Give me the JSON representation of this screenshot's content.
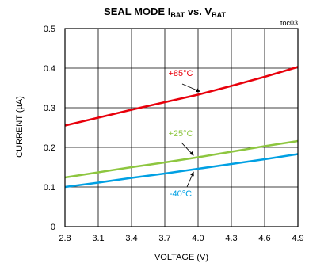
{
  "chart_data": {
    "type": "line",
    "title_main": "SEAL MODE I",
    "title_sub1": "BAT",
    "title_mid": " vs. V",
    "title_sub2": "BAT",
    "tag": "toc03",
    "xlabel": "VOLTAGE (V)",
    "ylabel": "CURRENT (µA)",
    "xlim": [
      2.8,
      4.9
    ],
    "ylim": [
      0,
      0.5
    ],
    "xticks": [
      "2.8",
      "3.1",
      "3.4",
      "3.7",
      "4.0",
      "4.3",
      "4.6",
      "4.9"
    ],
    "yticks": [
      "0",
      "0.1",
      "0.2",
      "0.3",
      "0.4",
      "0.5"
    ],
    "grid": true,
    "series": [
      {
        "name": "+85°C",
        "color": "#e8000b",
        "x": [
          2.8,
          3.1,
          3.4,
          3.7,
          4.0,
          4.3,
          4.6,
          4.9
        ],
        "y": [
          0.255,
          0.275,
          0.295,
          0.314,
          0.333,
          0.355,
          0.378,
          0.403
        ]
      },
      {
        "name": "+25°C",
        "color": "#8dc63f",
        "x": [
          2.8,
          3.1,
          3.4,
          3.7,
          4.0,
          4.3,
          4.6,
          4.9
        ],
        "y": [
          0.124,
          0.137,
          0.15,
          0.162,
          0.175,
          0.189,
          0.203,
          0.216
        ]
      },
      {
        "name": "-40°C",
        "color": "#00a0e3",
        "x": [
          2.8,
          3.1,
          3.4,
          3.7,
          4.0,
          4.3,
          4.6,
          4.9
        ],
        "y": [
          0.1,
          0.111,
          0.123,
          0.134,
          0.146,
          0.158,
          0.17,
          0.183
        ]
      }
    ]
  }
}
